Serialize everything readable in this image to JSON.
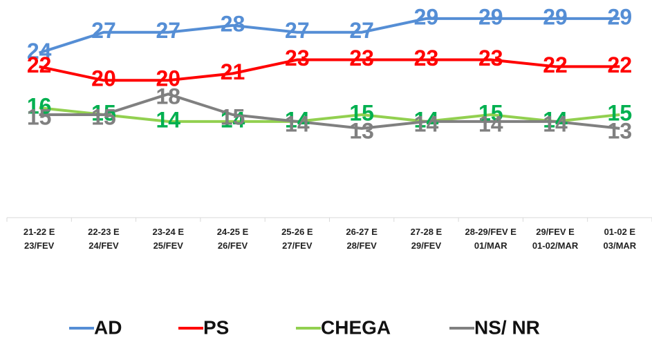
{
  "chart_data": {
    "type": "line",
    "categories": [
      "21-22 E\n23/FEV",
      "22-23 E\n24/FEV",
      "23-24 E\n25/FEV",
      "24-25 E\n26/FEV",
      "25-26 E\n27/FEV",
      "26-27 E\n28/FEV",
      "27-28 E\n29/FEV",
      "28-29/FEV E\n01/MAR",
      "29/FEV E\n01-02/MAR",
      "01-02 E\n03/MAR"
    ],
    "series": [
      {
        "name": "AD",
        "color": "#558ed5",
        "label_color": "#558ed5",
        "values": [
          24,
          27,
          27,
          28,
          27,
          27,
          29,
          29,
          29,
          29
        ]
      },
      {
        "name": "PS",
        "color": "#ff0000",
        "label_color": "#ff0000",
        "values": [
          22,
          20,
          20,
          21,
          23,
          23,
          23,
          23,
          22,
          22
        ]
      },
      {
        "name": "CHEGA",
        "color": "#92d050",
        "label_color": "#00b050",
        "values": [
          16,
          15,
          14,
          14,
          14,
          15,
          14,
          15,
          14,
          15
        ]
      },
      {
        "name": "NS/ NR",
        "color": "#808080",
        "label_color": "#808080",
        "values": [
          15,
          15,
          18,
          15,
          14,
          13,
          14,
          14,
          14,
          13
        ]
      }
    ],
    "ylim": [
      0,
      31
    ]
  }
}
